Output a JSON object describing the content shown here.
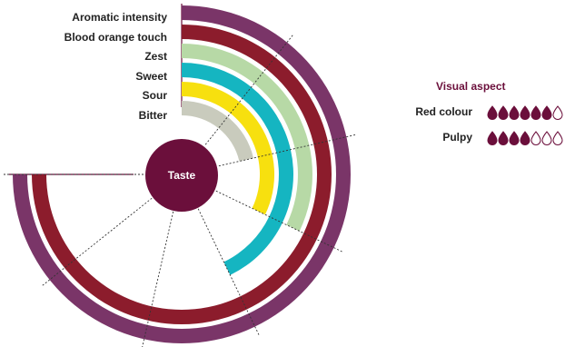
{
  "chart_data": {
    "type": "radial-bar",
    "center_label": "Taste",
    "scale_max": 7,
    "series": [
      {
        "name": "Aromatic intensity",
        "value": 7,
        "color": "#7a3568"
      },
      {
        "name": "Blood orange touch",
        "value": 7,
        "color": "#8c1c2c"
      },
      {
        "name": "Zest",
        "value": 3,
        "color": "#b7d9a6"
      },
      {
        "name": "Sweet",
        "value": 4,
        "color": "#15b5c1"
      },
      {
        "name": "Sour",
        "value": 3,
        "color": "#f7e00f"
      },
      {
        "name": "Bitter",
        "value": 2,
        "color": "#c9cbbd"
      }
    ]
  },
  "visual_aspect": {
    "title": "Visual aspect",
    "scale_max": 7,
    "drop_color": "#6b0f3b",
    "items": [
      {
        "label": "Red colour",
        "value": 6
      },
      {
        "label": "Pulpy",
        "value": 4
      }
    ]
  }
}
